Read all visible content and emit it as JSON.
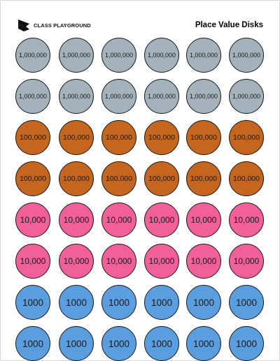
{
  "brand": {
    "name": "CLASS PLAYGROUND",
    "logo": "class-playground-logo"
  },
  "title": "Place Value Disks",
  "colors": {
    "1,000,000": "#a3b2bb",
    "100,000": "#c4661f",
    "10,000": "#f2609a",
    "1000": "#5b9ee0",
    "outline": "#1a1a1a"
  },
  "rows": [
    {
      "label": "1,000,000",
      "color": "#a3b2bb",
      "disks": [
        "1,000,000",
        "1,000,000",
        "1,000,000",
        "1,000,000",
        "1,000,000",
        "1,000,000"
      ]
    },
    {
      "label": "1,000,000",
      "color": "#a3b2bb",
      "disks": [
        "1,000,000",
        "1,000,000",
        "1,000,000",
        "1,000,000",
        "1,000,000",
        "1,000,000"
      ]
    },
    {
      "label": "100,000",
      "color": "#c4661f",
      "disks": [
        "100,000",
        "100,000",
        "100,000",
        "100,000",
        "100,000",
        "100,000"
      ]
    },
    {
      "label": "100,000",
      "color": "#c4661f",
      "disks": [
        "100,000",
        "100,000",
        "100,000",
        "100,000",
        "100,000",
        "100,000"
      ]
    },
    {
      "label": "10,000",
      "color": "#f2609a",
      "disks": [
        "10,000",
        "10,000",
        "10,000",
        "10,000",
        "10,000",
        "10,000"
      ]
    },
    {
      "label": "10,000",
      "color": "#f2609a",
      "disks": [
        "10,000",
        "10,000",
        "10,000",
        "10,000",
        "10,000",
        "10,000"
      ]
    },
    {
      "label": "1000",
      "color": "#5b9ee0",
      "disks": [
        "1000",
        "1000",
        "1000",
        "1000",
        "1000",
        "1000"
      ]
    },
    {
      "label": "1000",
      "color": "#5b9ee0",
      "disks": [
        "1000",
        "1000",
        "1000",
        "1000",
        "1000",
        "1000"
      ]
    }
  ]
}
